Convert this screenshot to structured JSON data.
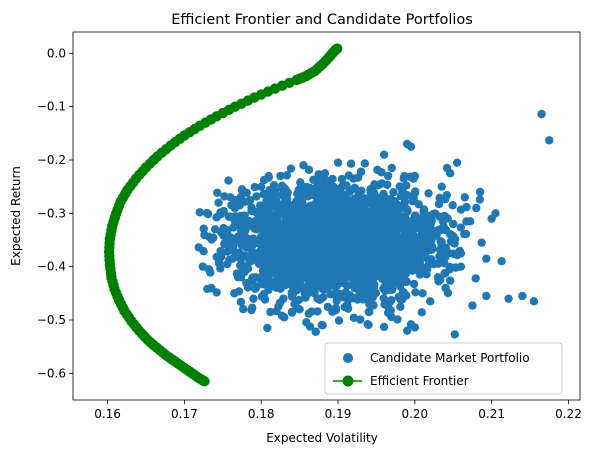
{
  "chart_data": {
    "type": "scatter",
    "title": "Efficient Frontier and Candidate Portfolios",
    "xlabel": "Expected Volatility",
    "ylabel": "Expected Return",
    "xlim": [
      0.1555,
      0.2215
    ],
    "ylim": [
      -0.65,
      0.04
    ],
    "xticks": [
      0.16,
      0.17,
      0.18,
      0.19,
      0.2,
      0.21,
      0.22
    ],
    "xtick_labels": [
      "0.16",
      "0.17",
      "0.18",
      "0.19",
      "0.20",
      "0.21",
      "0.22"
    ],
    "yticks": [
      0.0,
      -0.1,
      -0.2,
      -0.3,
      -0.4,
      -0.5,
      -0.6
    ],
    "ytick_labels": [
      "0.0",
      "−0.1",
      "−0.2",
      "−0.3",
      "−0.4",
      "−0.5",
      "−0.6"
    ],
    "grid": false,
    "legend_position": "bottom-right",
    "series": [
      {
        "name": "Candidate Market Portfolio",
        "kind": "scatter",
        "color": "#1f77b4",
        "points": [
          [
            0.2165,
            -0.114
          ],
          [
            0.2175,
            -0.163
          ],
          [
            0.2155,
            -0.465
          ],
          [
            0.214,
            -0.455
          ],
          [
            0.2122,
            -0.46
          ],
          [
            0.2093,
            -0.455
          ],
          [
            0.2075,
            -0.473
          ],
          [
            0.2113,
            -0.39
          ],
          [
            0.2093,
            -0.385
          ],
          [
            0.206,
            -0.375
          ],
          [
            0.2012,
            -0.293
          ],
          [
            0.2005,
            -0.283
          ],
          [
            0.199,
            -0.17
          ],
          [
            0.201,
            -0.405
          ],
          [
            0.2,
            -0.514
          ],
          [
            0.1995,
            -0.508
          ],
          [
            0.2052,
            -0.527
          ],
          [
            0.1883,
            -0.225
          ],
          [
            0.1917,
            -0.207
          ],
          [
            0.1775,
            -0.255
          ],
          [
            0.172,
            -0.298
          ],
          [
            0.1732,
            -0.405
          ],
          [
            0.1725,
            -0.371
          ],
          [
            0.1745,
            -0.393
          ],
          [
            0.1808,
            -0.515
          ],
          [
            0.183,
            -0.495
          ],
          [
            0.1871,
            -0.522
          ],
          [
            0.188,
            -0.51
          ],
          [
            0.199,
            -0.52
          ],
          [
            0.196,
            -0.513
          ],
          [
            0.1862,
            -0.488
          ],
          [
            0.2042,
            -0.215
          ],
          [
            0.2046,
            -0.225
          ],
          [
            0.2087,
            -0.355
          ],
          [
            0.2055,
            -0.205
          ],
          [
            0.1995,
            -0.175
          ],
          [
            0.196,
            -0.19
          ],
          [
            0.193,
            -0.222
          ],
          [
            0.19,
            -0.205
          ],
          [
            0.1855,
            -0.21
          ],
          [
            0.1825,
            -0.23
          ],
          [
            0.18,
            -0.25
          ],
          [
            0.176,
            -0.27
          ],
          [
            0.179,
            -0.46
          ],
          [
            0.1765,
            -0.45
          ],
          [
            0.1812,
            -0.485
          ],
          [
            0.185,
            -0.48
          ],
          [
            0.194,
            -0.485
          ],
          [
            0.1965,
            -0.475
          ],
          [
            0.202,
            -0.465
          ],
          [
            0.201,
            -0.45
          ],
          [
            0.204,
            -0.44
          ],
          [
            0.203,
            -0.42
          ],
          [
            0.206,
            -0.4
          ],
          [
            0.2072,
            -0.315
          ],
          [
            0.205,
            -0.32
          ],
          [
            0.208,
            -0.29
          ],
          [
            0.21,
            -0.31
          ],
          [
            0.2085,
            -0.26
          ],
          [
            0.2105,
            -0.3
          ],
          [
            0.2065,
            -0.27
          ],
          [
            0.2035,
            -0.25
          ],
          [
            0.2,
            -0.23
          ],
          [
            0.197,
            -0.215
          ],
          [
            0.1752,
            -0.357
          ],
          [
            0.174,
            -0.33
          ],
          [
            0.1735,
            -0.44
          ],
          [
            0.177,
            -0.42
          ],
          [
            0.178,
            -0.38
          ],
          [
            0.1795,
            -0.33
          ]
        ]
      },
      {
        "name": "Efficient Frontier",
        "kind": "line_markers",
        "color": "#008000",
        "points": [
          [
            0.1726,
            -0.615
          ],
          [
            0.1718,
            -0.608
          ],
          [
            0.171,
            -0.6
          ],
          [
            0.17,
            -0.59
          ],
          [
            0.1688,
            -0.578
          ],
          [
            0.1676,
            -0.566
          ],
          [
            0.1664,
            -0.552
          ],
          [
            0.1652,
            -0.537
          ],
          [
            0.1641,
            -0.52
          ],
          [
            0.1631,
            -0.502
          ],
          [
            0.1622,
            -0.483
          ],
          [
            0.1615,
            -0.463
          ],
          [
            0.1609,
            -0.442
          ],
          [
            0.1605,
            -0.42
          ],
          [
            0.1603,
            -0.396
          ],
          [
            0.1602,
            -0.372
          ],
          [
            0.1603,
            -0.348
          ],
          [
            0.1606,
            -0.324
          ],
          [
            0.1611,
            -0.301
          ],
          [
            0.1617,
            -0.278
          ],
          [
            0.1626,
            -0.256
          ],
          [
            0.1637,
            -0.235
          ],
          [
            0.165,
            -0.214
          ],
          [
            0.1665,
            -0.193
          ],
          [
            0.1682,
            -0.173
          ],
          [
            0.17,
            -0.154
          ],
          [
            0.172,
            -0.136
          ],
          [
            0.1742,
            -0.118
          ],
          [
            0.1766,
            -0.1
          ],
          [
            0.1791,
            -0.083
          ],
          [
            0.1818,
            -0.066
          ],
          [
            0.1846,
            -0.05
          ],
          [
            0.1858,
            -0.043
          ],
          [
            0.187,
            -0.033
          ],
          [
            0.188,
            -0.02
          ],
          [
            0.1888,
            -0.008
          ],
          [
            0.1895,
            0.004
          ],
          [
            0.1899,
            0.009
          ]
        ]
      }
    ]
  }
}
